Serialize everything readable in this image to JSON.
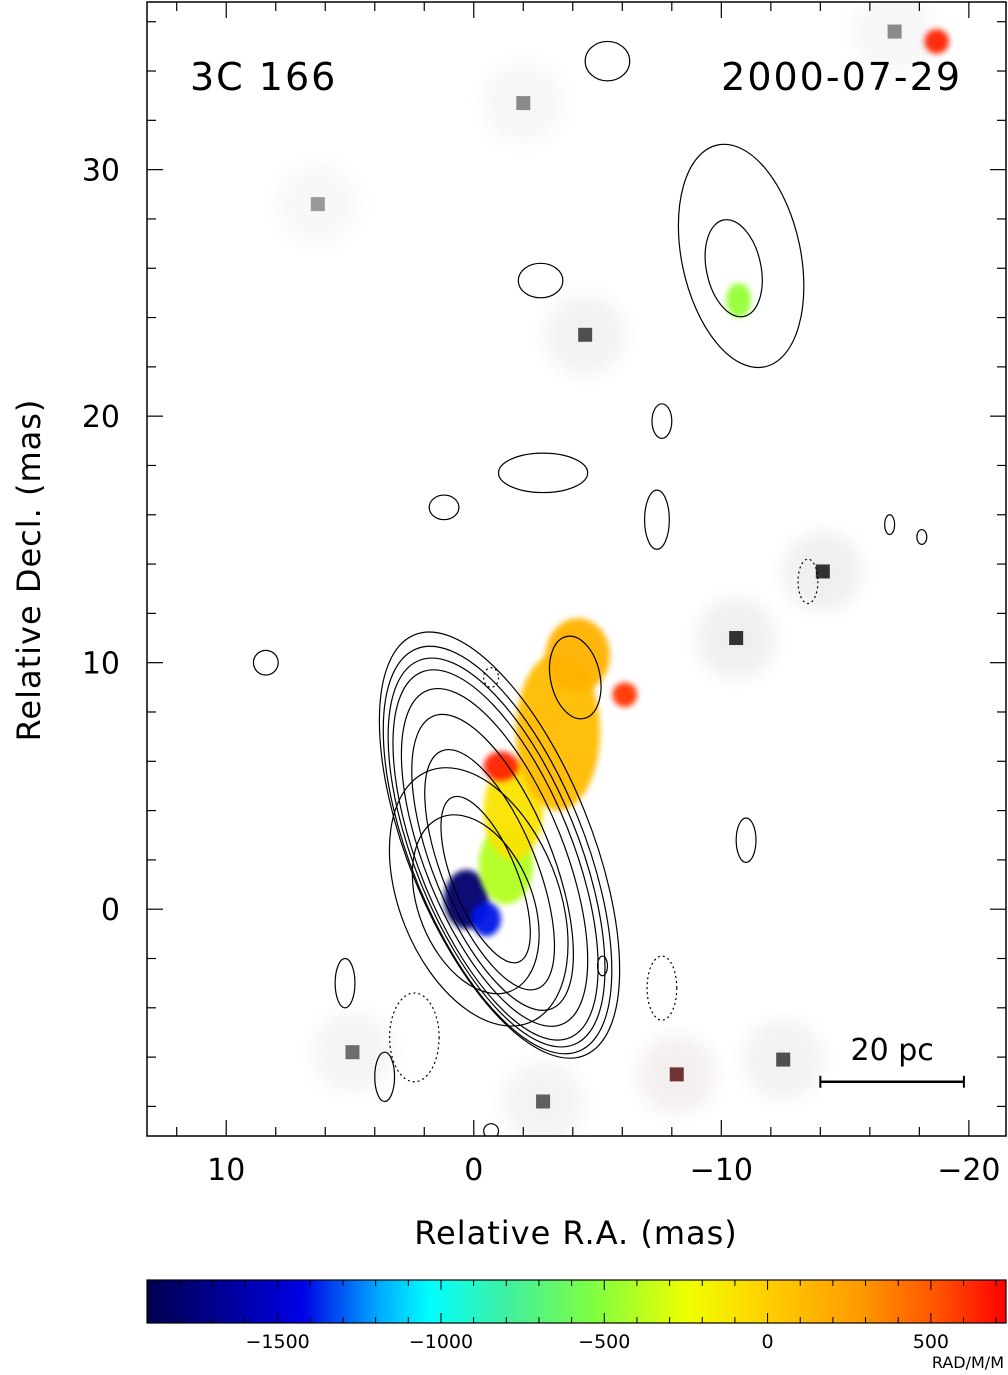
{
  "chart_data": {
    "type": "heatmap",
    "source_name": "3C 166",
    "epoch": "2000-07-29",
    "xlabel": "Relative R.A. (mas)",
    "ylabel": "Relative Decl. (mas)",
    "xlim": [
      13.2,
      -21.5
    ],
    "ylim": [
      -9.2,
      36.8
    ],
    "x_ticks": [
      10,
      0,
      -10,
      -20
    ],
    "x_tick_labels": [
      "10",
      "0",
      "−10",
      "−20"
    ],
    "y_ticks": [
      0,
      10,
      20,
      30
    ],
    "y_tick_labels": [
      "0",
      "10",
      "20",
      "30"
    ],
    "scale_bar": {
      "label": "20 pc",
      "x_from": -14,
      "x_to": -19.8,
      "y": -7
    },
    "contours": {
      "center": [
        0,
        0
      ],
      "position_angle_deg": -22,
      "levels": [
        {
          "a": 1.3,
          "b": 3.6,
          "dy": 1.2,
          "style": "solid"
        },
        {
          "a": 1.9,
          "b": 5.2,
          "dy": 1.6,
          "style": "solid"
        },
        {
          "a": 2.4,
          "b": 6.4,
          "dy": 1.9,
          "style": "solid"
        },
        {
          "a": 2.8,
          "b": 7.3,
          "dy": 2.1,
          "style": "solid"
        },
        {
          "a": 3.1,
          "b": 8.0,
          "dy": 2.2,
          "style": "solid"
        },
        {
          "a": 3.3,
          "b": 8.4,
          "dy": 2.3,
          "style": "solid"
        },
        {
          "a": 3.5,
          "b": 8.8,
          "dy": 2.4,
          "style": "solid"
        },
        {
          "a": 3.7,
          "b": 9.2,
          "dy": 2.6,
          "style": "solid"
        },
        {
          "a": 3.2,
          "b": 5.5,
          "dy": 0.5,
          "style": "solid"
        },
        {
          "a": 2.3,
          "b": 3.8,
          "dy": 0.2,
          "style": "solid"
        }
      ],
      "jet_knots": [
        {
          "cx": -4.1,
          "cy": 9.4,
          "rx": 1.0,
          "ry": 1.7
        },
        {
          "cx": -10.5,
          "cy": 26.0,
          "rx": 1.1,
          "ry": 2.0
        },
        {
          "cx": -10.8,
          "cy": 26.5,
          "rx": 2.4,
          "ry": 4.6
        }
      ],
      "islands": [
        {
          "cx": 8.4,
          "cy": 10.0,
          "rx": 0.5,
          "ry": 0.5
        },
        {
          "cx": 5.2,
          "cy": -3.0,
          "rx": 0.4,
          "ry": 1.0
        },
        {
          "cx": 3.6,
          "cy": -6.8,
          "rx": 0.4,
          "ry": 1.0
        },
        {
          "cx": -2.8,
          "cy": 17.7,
          "rx": 1.8,
          "ry": 0.8
        },
        {
          "cx": 1.2,
          "cy": 16.3,
          "rx": 0.6,
          "ry": 0.5
        },
        {
          "cx": -2.7,
          "cy": 25.5,
          "rx": 0.9,
          "ry": 0.7
        },
        {
          "cx": -5.4,
          "cy": 34.4,
          "rx": 0.9,
          "ry": 0.8
        },
        {
          "cx": -11.0,
          "cy": 2.8,
          "rx": 0.4,
          "ry": 0.9
        },
        {
          "cx": -5.2,
          "cy": -2.3,
          "rx": 0.2,
          "ry": 0.4
        },
        {
          "cx": -0.7,
          "cy": -9.0,
          "rx": 0.3,
          "ry": 0.3
        },
        {
          "cx": -7.6,
          "cy": 19.8,
          "rx": 0.4,
          "ry": 0.7
        },
        {
          "cx": -16.8,
          "cy": 15.6,
          "rx": 0.2,
          "ry": 0.4
        },
        {
          "cx": -18.1,
          "cy": 15.1,
          "rx": 0.2,
          "ry": 0.3
        },
        {
          "cx": -7.4,
          "cy": 15.8,
          "rx": 0.5,
          "ry": 1.2
        }
      ],
      "negative_islands": [
        {
          "cx": 2.4,
          "cy": -5.2,
          "rx": 1.0,
          "ry": 1.8
        },
        {
          "cx": -7.6,
          "cy": -3.2,
          "rx": 0.6,
          "ry": 1.3
        },
        {
          "cx": -13.5,
          "cy": 13.3,
          "rx": 0.4,
          "ry": 0.9
        },
        {
          "cx": -0.7,
          "cy": 9.4,
          "rx": 0.3,
          "ry": 0.4
        }
      ]
    },
    "rm_map": {
      "regions": [
        {
          "name": "core",
          "cx": 0.3,
          "cy": 0.4,
          "rx": 0.9,
          "ry": 1.2,
          "value": -1800
        },
        {
          "name": "core-edge",
          "cx": -0.5,
          "cy": -0.4,
          "rx": 0.6,
          "ry": 0.7,
          "value": -1400
        },
        {
          "name": "inner-jet",
          "cx": -1.3,
          "cy": 1.8,
          "rx": 1.1,
          "ry": 1.6,
          "value": -400
        },
        {
          "name": "jet-yellow",
          "cx": -1.6,
          "cy": 4.0,
          "rx": 1.2,
          "ry": 2.0,
          "value": -100
        },
        {
          "name": "jet-orange",
          "cx": -3.4,
          "cy": 7.2,
          "rx": 1.7,
          "ry": 3.2,
          "value": 100
        },
        {
          "name": "jet-upper",
          "cx": -4.2,
          "cy": 10.3,
          "rx": 1.3,
          "ry": 1.5,
          "value": 150
        },
        {
          "name": "red-spot",
          "cx": -1.1,
          "cy": 5.8,
          "rx": 0.7,
          "ry": 0.6,
          "value": 650
        },
        {
          "name": "red-spot-2",
          "cx": -6.1,
          "cy": 8.7,
          "rx": 0.5,
          "ry": 0.5,
          "value": 600
        },
        {
          "name": "far-knot",
          "cx": -10.7,
          "cy": 24.7,
          "rx": 0.5,
          "ry": 0.7,
          "value": -480
        },
        {
          "name": "corner-spot",
          "cx": -18.7,
          "cy": 35.2,
          "rx": 0.5,
          "ry": 0.5,
          "value": 650
        }
      ],
      "spots": [
        {
          "cx": -2.0,
          "cy": 32.7,
          "color": "#777777"
        },
        {
          "cx": 6.3,
          "cy": 28.6,
          "color": "#888888"
        },
        {
          "cx": -4.5,
          "cy": 23.3,
          "color": "#333333"
        },
        {
          "cx": -10.6,
          "cy": 11.0,
          "color": "#111111"
        },
        {
          "cx": -14.1,
          "cy": 13.7,
          "color": "#111111"
        },
        {
          "cx": -8.2,
          "cy": -6.7,
          "color": "#5a1010"
        },
        {
          "cx": -12.5,
          "cy": -6.1,
          "color": "#333333"
        },
        {
          "cx": 4.9,
          "cy": -5.8,
          "color": "#555555"
        },
        {
          "cx": -2.8,
          "cy": -7.8,
          "color": "#444444"
        },
        {
          "cx": -17.0,
          "cy": 35.6,
          "color": "#777777"
        }
      ]
    },
    "colorbar": {
      "label": "RAD/M/M",
      "min": -1900,
      "max": 730,
      "ticks": [
        -1500,
        -1000,
        -500,
        0,
        500
      ],
      "tick_labels": [
        "−1500",
        "−1000",
        "−500",
        "0",
        "500"
      ]
    }
  }
}
